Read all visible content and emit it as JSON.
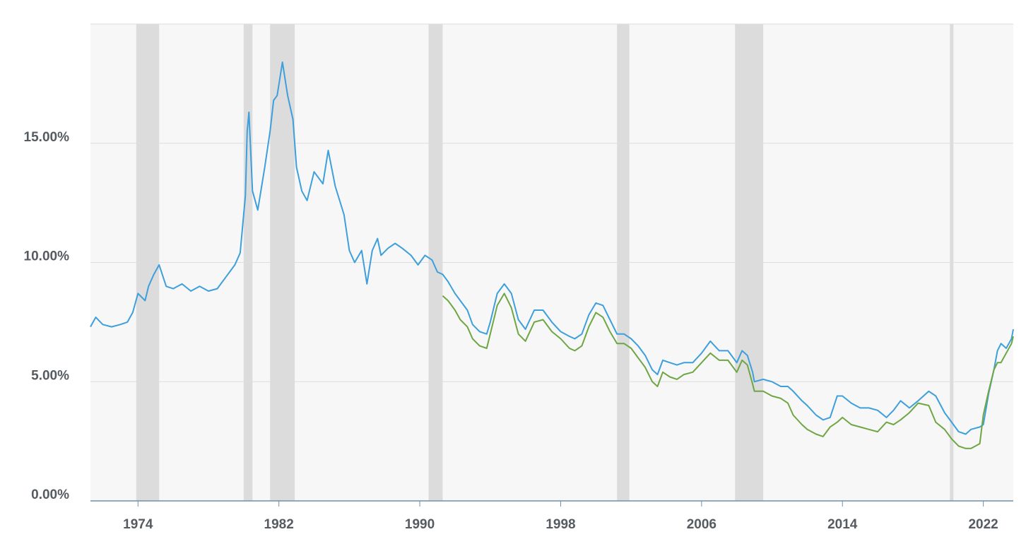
{
  "chart_data": {
    "type": "line",
    "title": "",
    "xlabel": "",
    "ylabel": "",
    "xlim": [
      1971.3,
      2023.7
    ],
    "ylim": [
      0,
      20
    ],
    "grid": "horizontal",
    "x_tick_labels": [
      "1974",
      "1982",
      "1990",
      "1998",
      "2006",
      "2014",
      "2022"
    ],
    "x_ticks": [
      1974,
      1982,
      1990,
      1998,
      2006,
      2014,
      2022
    ],
    "y_tick_labels": [
      "0.00%",
      "5.00%",
      "10.00%",
      "15.00%"
    ],
    "y_ticks": [
      0,
      5,
      10,
      15
    ],
    "recession_bands": [
      [
        1973.9,
        1975.2
      ],
      [
        1980.0,
        1980.5
      ],
      [
        1981.5,
        1982.9
      ],
      [
        1990.5,
        1991.3
      ],
      [
        2001.2,
        2001.9
      ],
      [
        2007.9,
        2009.5
      ],
      [
        2020.1,
        2020.3
      ]
    ],
    "colors": {
      "plot_background": "#f7f7f7",
      "recession_band": "#dcdcdc",
      "grid": "#dddddd",
      "axis_line": "#6f8fa8",
      "axis_label": "#555b61"
    },
    "series": [
      {
        "color": "#3d9fdb",
        "x": [
          1971.3,
          1971.6,
          1972.0,
          1972.5,
          1973.0,
          1973.4,
          1973.7,
          1974.0,
          1974.4,
          1974.6,
          1974.9,
          1975.2,
          1975.6,
          1976.0,
          1976.5,
          1977.0,
          1977.5,
          1978.0,
          1978.5,
          1979.0,
          1979.5,
          1979.8,
          1980.1,
          1980.2,
          1980.3,
          1980.5,
          1980.8,
          1981.2,
          1981.5,
          1981.7,
          1981.9,
          1982.2,
          1982.5,
          1982.8,
          1983.0,
          1983.3,
          1983.6,
          1984.0,
          1984.5,
          1984.8,
          1985.2,
          1985.7,
          1986.0,
          1986.3,
          1986.7,
          1987.0,
          1987.3,
          1987.6,
          1987.8,
          1988.2,
          1988.6,
          1989.0,
          1989.5,
          1989.9,
          1990.3,
          1990.7,
          1991.0,
          1991.3,
          1991.6,
          1992.0,
          1992.3,
          1992.7,
          1993.0,
          1993.4,
          1993.8,
          1994.0,
          1994.4,
          1994.8,
          1995.2,
          1995.6,
          1996.0,
          1996.5,
          1997.0,
          1997.5,
          1998.0,
          1998.5,
          1998.8,
          1999.2,
          1999.6,
          2000.0,
          2000.4,
          2000.8,
          2001.2,
          2001.6,
          2002.0,
          2002.4,
          2002.8,
          2003.2,
          2003.5,
          2003.8,
          2004.2,
          2004.6,
          2005.0,
          2005.5,
          2006.0,
          2006.5,
          2007.0,
          2007.5,
          2008.0,
          2008.3,
          2008.6,
          2008.9,
          2009.0,
          2009.5,
          2010.0,
          2010.5,
          2010.9,
          2011.2,
          2011.7,
          2012.0,
          2012.5,
          2012.9,
          2013.3,
          2013.7,
          2014.0,
          2014.5,
          2015.0,
          2015.5,
          2016.0,
          2016.5,
          2016.9,
          2017.3,
          2017.8,
          2018.3,
          2018.9,
          2019.3,
          2019.8,
          2020.2,
          2020.6,
          2021.0,
          2021.3,
          2021.8,
          2022.0,
          2022.3,
          2022.6,
          2022.8,
          2023.0,
          2023.3,
          2023.6,
          2023.7
        ],
        "values": [
          7.3,
          7.7,
          7.4,
          7.3,
          7.4,
          7.5,
          7.9,
          8.7,
          8.4,
          9.0,
          9.5,
          9.9,
          9.0,
          8.9,
          9.1,
          8.8,
          9.0,
          8.8,
          8.9,
          9.4,
          9.9,
          10.4,
          12.8,
          15.5,
          16.3,
          13.0,
          12.2,
          14.0,
          15.5,
          16.8,
          17.0,
          18.4,
          17.0,
          16.0,
          14.0,
          13.0,
          12.6,
          13.8,
          13.3,
          14.7,
          13.2,
          12.0,
          10.5,
          10.0,
          10.5,
          9.1,
          10.5,
          11.0,
          10.3,
          10.6,
          10.8,
          10.6,
          10.3,
          9.9,
          10.3,
          10.1,
          9.6,
          9.5,
          9.2,
          8.7,
          8.4,
          8.0,
          7.4,
          7.1,
          7.0,
          7.5,
          8.7,
          9.1,
          8.7,
          7.6,
          7.2,
          8.0,
          8.0,
          7.5,
          7.1,
          6.9,
          6.8,
          7.0,
          7.8,
          8.3,
          8.2,
          7.6,
          7.0,
          7.0,
          6.8,
          6.5,
          6.1,
          5.5,
          5.3,
          5.9,
          5.8,
          5.7,
          5.8,
          5.8,
          6.2,
          6.7,
          6.3,
          6.3,
          5.8,
          6.3,
          6.1,
          5.4,
          5.0,
          5.1,
          5.0,
          4.8,
          4.8,
          4.6,
          4.2,
          4.0,
          3.6,
          3.4,
          3.5,
          4.4,
          4.4,
          4.1,
          3.9,
          3.9,
          3.8,
          3.5,
          3.8,
          4.2,
          3.9,
          4.2,
          4.6,
          4.4,
          3.7,
          3.3,
          2.9,
          2.8,
          3.0,
          3.1,
          3.2,
          4.5,
          5.5,
          6.3,
          6.6,
          6.4,
          6.8,
          7.2
        ]
      },
      {
        "color": "#6fa644",
        "x": [
          1991.3,
          1991.6,
          1992.0,
          1992.3,
          1992.7,
          1993.0,
          1993.4,
          1993.8,
          1994.0,
          1994.4,
          1994.8,
          1995.2,
          1995.6,
          1996.0,
          1996.5,
          1997.0,
          1997.5,
          1998.0,
          1998.5,
          1998.8,
          1999.2,
          1999.6,
          2000.0,
          2000.4,
          2000.8,
          2001.2,
          2001.6,
          2002.0,
          2002.4,
          2002.8,
          2003.2,
          2003.5,
          2003.8,
          2004.2,
          2004.6,
          2005.0,
          2005.5,
          2006.0,
          2006.5,
          2007.0,
          2007.5,
          2008.0,
          2008.3,
          2008.6,
          2008.9,
          2009.0,
          2009.5,
          2010.0,
          2010.5,
          2010.9,
          2011.2,
          2011.7,
          2012.0,
          2012.5,
          2012.9,
          2013.3,
          2013.7,
          2014.0,
          2014.5,
          2015.0,
          2015.5,
          2016.0,
          2016.5,
          2016.9,
          2017.3,
          2017.8,
          2018.3,
          2018.9,
          2019.3,
          2019.8,
          2020.2,
          2020.6,
          2021.0,
          2021.3,
          2021.8,
          2022.0,
          2022.3,
          2022.6,
          2022.8,
          2023.0,
          2023.3,
          2023.6,
          2023.7
        ],
        "values": [
          8.6,
          8.4,
          8.0,
          7.6,
          7.3,
          6.8,
          6.5,
          6.4,
          7.0,
          8.2,
          8.7,
          8.1,
          7.0,
          6.7,
          7.5,
          7.6,
          7.1,
          6.8,
          6.4,
          6.3,
          6.5,
          7.3,
          7.9,
          7.7,
          7.1,
          6.6,
          6.6,
          6.4,
          6.0,
          5.6,
          5.0,
          4.8,
          5.4,
          5.2,
          5.1,
          5.3,
          5.4,
          5.8,
          6.2,
          5.9,
          5.9,
          5.4,
          5.9,
          5.7,
          4.9,
          4.6,
          4.6,
          4.4,
          4.3,
          4.1,
          3.6,
          3.2,
          3.0,
          2.8,
          2.7,
          3.1,
          3.3,
          3.5,
          3.2,
          3.1,
          3.0,
          2.9,
          3.3,
          3.2,
          3.4,
          3.7,
          4.1,
          4.0,
          3.3,
          3.0,
          2.6,
          2.3,
          2.2,
          2.2,
          2.4,
          3.6,
          4.6,
          5.5,
          5.8,
          5.8,
          6.2,
          6.6,
          6.9
        ]
      }
    ]
  }
}
